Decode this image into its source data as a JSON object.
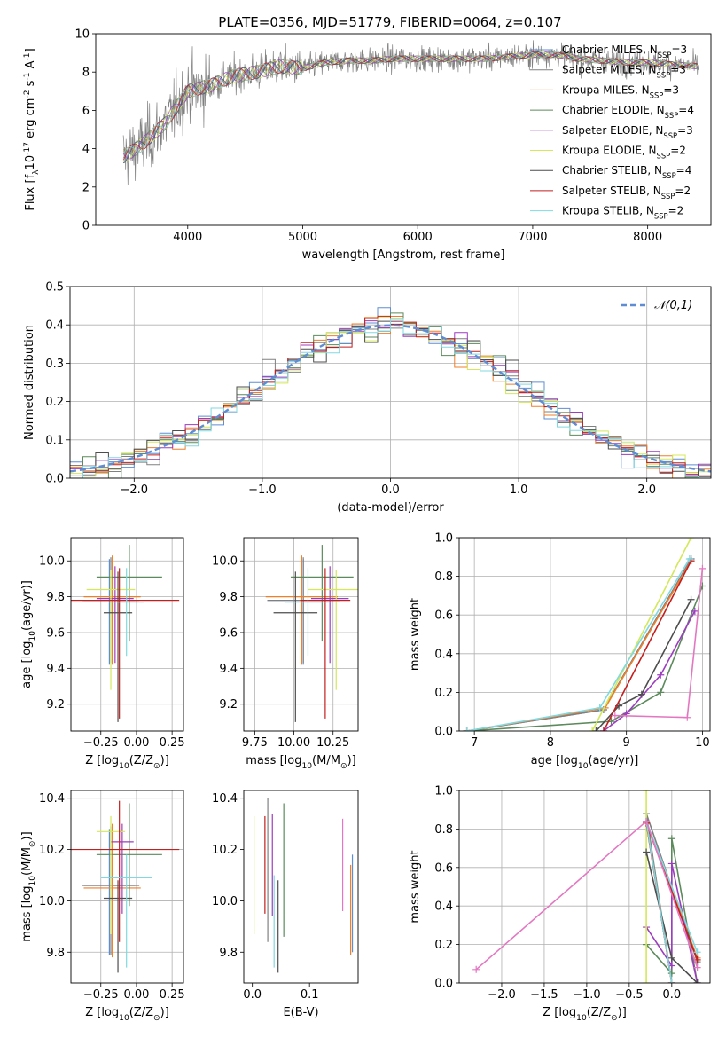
{
  "figure": {
    "title": "PLATE=0356, MJD=51779, FIBERID=0064, z=0.107"
  },
  "series": [
    {
      "name": "Chabrier MILES, N$_{SSP}$=3",
      "color": "#5f8dd3"
    },
    {
      "name": "Salpeter MILES, N$_{SSP}$=3",
      "color": "#808080"
    },
    {
      "name": "Kroupa MILES, N$_{SSP}$=3",
      "color": "#f07f2a"
    },
    {
      "name": "Chabrier ELODIE, N$_{SSP}$=4",
      "color": "#5c8a5c"
    },
    {
      "name": "Salpeter ELODIE, N$_{SSP}$=3",
      "color": "#9c3dbf"
    },
    {
      "name": "Kroupa ELODIE, N$_{SSP}$=2",
      "color": "#d4e85a"
    },
    {
      "name": "Chabrier STELIB, N$_{SSP}$=4",
      "color": "#4d4d4d"
    },
    {
      "name": "Salpeter STELIB, N$_{SSP}$=2",
      "color": "#c21f1f"
    },
    {
      "name": "Kroupa STELIB, N$_{SSP}$=2",
      "color": "#80d8e0"
    }
  ],
  "chart_data": [
    {
      "id": "spectrum",
      "type": "line",
      "xlabel": "wavelength [Angstrom, rest frame]",
      "ylabel": "Flux [f$_\\lambda$10$^{-17}$ erg cm$^{-2}$ s$^{-1}$ A$^{-1}$]",
      "xlim": [
        3200,
        8550
      ],
      "ylim": [
        0,
        10
      ],
      "xticks": [
        4000,
        5000,
        6000,
        7000,
        8000
      ],
      "yticks": [
        0,
        2,
        4,
        6,
        8,
        10
      ],
      "grid": false,
      "legend": "right",
      "data_wavelength_range": [
        3440,
        8440
      ],
      "model_anchors_x": [
        3450,
        3600,
        3800,
        4000,
        4200,
        4400,
        4600,
        4800,
        5000,
        5200,
        5400,
        5600,
        5800,
        6000,
        6200,
        6400,
        6600,
        6800,
        7000,
        7200,
        7400,
        7600,
        7800,
        8000,
        8200,
        8440
      ],
      "model_anchors_y": [
        3.6,
        4.2,
        5.3,
        7.0,
        7.3,
        7.8,
        8.0,
        8.3,
        8.2,
        8.5,
        8.6,
        8.6,
        8.7,
        8.7,
        8.7,
        8.7,
        8.7,
        8.8,
        8.9,
        8.9,
        8.7,
        8.6,
        8.5,
        8.5,
        8.4,
        8.3
      ]
    },
    {
      "id": "residuals",
      "type": "histogram",
      "xlabel": "(data-model)/error",
      "ylabel": "Normed distribution",
      "xlim": [
        -2.5,
        2.5
      ],
      "ylim": [
        0,
        0.5
      ],
      "xticks": [
        -2,
        -1,
        0,
        1,
        2
      ],
      "yticks": [
        0.0,
        0.1,
        0.2,
        0.3,
        0.4,
        0.5
      ],
      "grid": true,
      "legend": "top-right",
      "reference_curve": "$\\mathcal{N}(0,1)$",
      "reference_color": "#5f8dd3"
    },
    {
      "id": "age-vs-Z",
      "type": "scatter",
      "xlabel": "Z [log$_{10}$(Z/Z$_\\odot$)]",
      "ylabel": "age  [log$_{10}$(age/yr)]",
      "xlim": [
        -0.46,
        0.33
      ],
      "ylim": [
        9.05,
        10.13
      ],
      "xticks": [
        -0.25,
        0.0,
        0.25
      ],
      "yticks": [
        9.2,
        9.4,
        9.6,
        9.8,
        10.0
      ],
      "grid": true,
      "points": [
        {
          "x": -0.19,
          "y": 9.78,
          "xerr": 0.18,
          "ylo": 9.42,
          "yhi": 10.01
        },
        {
          "x": -0.18,
          "y": 9.78,
          "xerr": 0.2,
          "ylo": 9.43,
          "yhi": 10.02
        },
        {
          "x": -0.17,
          "y": 9.8,
          "xerr": 0.2,
          "ylo": 9.42,
          "yhi": 10.03
        },
        {
          "x": -0.05,
          "y": 9.91,
          "xerr": 0.23,
          "ylo": 9.55,
          "yhi": 10.09
        },
        {
          "x": -0.15,
          "y": 9.79,
          "xerr": 0.13,
          "ylo": 9.43,
          "yhi": 9.97
        },
        {
          "x": -0.18,
          "y": 9.84,
          "xerr": 0.17,
          "ylo": 9.28,
          "yhi": 9.95
        },
        {
          "x": -0.13,
          "y": 9.71,
          "xerr": 0.1,
          "ylo": 9.1,
          "yhi": 9.94
        },
        {
          "x": -0.12,
          "y": 9.78,
          "xerr": 0.42,
          "ylo": 9.12,
          "yhi": 9.96
        },
        {
          "x": -0.07,
          "y": 9.77,
          "xerr": 0.12,
          "ylo": 9.47,
          "yhi": 9.96
        }
      ]
    },
    {
      "id": "age-vs-mass",
      "type": "scatter",
      "xlabel": "mass [log$_{10}$(M/M$_\\odot$)]",
      "ylabel": "",
      "xlim": [
        9.68,
        10.41
      ],
      "ylim": [
        9.05,
        10.13
      ],
      "xticks": [
        9.75,
        10.0,
        10.25
      ],
      "yticks": [
        9.2,
        9.4,
        9.6,
        9.8,
        10.0
      ],
      "grid": true,
      "points": [
        {
          "x": 10.06,
          "y": 9.78,
          "xerr": 0.23,
          "ylo": 9.42,
          "yhi": 10.01
        },
        {
          "x": 10.06,
          "y": 9.78,
          "xerr": 0.23,
          "ylo": 9.43,
          "yhi": 10.02
        },
        {
          "x": 10.05,
          "y": 9.8,
          "xerr": 0.23,
          "ylo": 9.42,
          "yhi": 10.03
        },
        {
          "x": 10.18,
          "y": 9.91,
          "xerr": 0.2,
          "ylo": 9.55,
          "yhi": 10.09
        },
        {
          "x": 10.23,
          "y": 9.79,
          "xerr": 0.12,
          "ylo": 9.43,
          "yhi": 9.97
        },
        {
          "x": 10.27,
          "y": 9.84,
          "xerr": 0.18,
          "ylo": 9.28,
          "yhi": 9.95
        },
        {
          "x": 10.01,
          "y": 9.71,
          "xerr": 0.14,
          "ylo": 9.1,
          "yhi": 9.94
        },
        {
          "x": 10.2,
          "y": 9.78,
          "xerr": 0.16,
          "ylo": 9.12,
          "yhi": 9.96
        },
        {
          "x": 10.09,
          "y": 9.77,
          "xerr": 0.15,
          "ylo": 9.47,
          "yhi": 9.96
        }
      ]
    },
    {
      "id": "mass-weight-vs-age",
      "type": "line",
      "xlabel": "age  [log$_{10}$(age/yr)]",
      "ylabel": "mass weight",
      "xlim": [
        6.8,
        10.1
      ],
      "ylim": [
        0,
        1
      ],
      "xticks": [
        7,
        8,
        9,
        10
      ],
      "yticks": [
        0.0,
        0.2,
        0.4,
        0.6,
        0.8,
        1.0
      ],
      "grid": true,
      "lines": [
        {
          "x": [
            6.9,
            8.7,
            9.85
          ],
          "y": [
            0.0,
            0.11,
            0.89
          ]
        },
        {
          "x": [
            6.9,
            8.7,
            9.85
          ],
          "y": [
            0.0,
            0.11,
            0.89
          ]
        },
        {
          "x": [
            6.9,
            8.72,
            9.85
          ],
          "y": [
            0.0,
            0.12,
            0.88
          ]
        },
        {
          "x": [
            6.9,
            8.8,
            9.45,
            10.0
          ],
          "y": [
            0.0,
            0.05,
            0.2,
            0.75
          ]
        },
        {
          "x": [
            8.7,
            9.0,
            9.45,
            9.9
          ],
          "y": [
            0.0,
            0.09,
            0.29,
            0.62
          ]
        },
        {
          "x": [
            8.55,
            9.85
          ],
          "y": [
            0.0,
            1.0
          ]
        },
        {
          "x": [
            8.6,
            8.9,
            9.2,
            9.85
          ],
          "y": [
            0.0,
            0.13,
            0.19,
            0.68
          ]
        },
        {
          "x": [
            8.7,
            9.85
          ],
          "y": [
            0.0,
            0.88
          ]
        },
        {
          "x": [
            6.9,
            8.65,
            9.83
          ],
          "y": [
            0.0,
            0.12,
            0.89
          ]
        }
      ],
      "extra_line": {
        "x": [
          8.85,
          9.8,
          10.0
        ],
        "y": [
          0.08,
          0.07,
          0.84
        ],
        "color": "#e377c2"
      }
    },
    {
      "id": "mass-vs-Z",
      "type": "scatter",
      "xlabel": "Z [log$_{10}$(Z/Z$_\\odot$)]",
      "ylabel": "mass [log$_{10}$(M/M$_\\odot$)]",
      "xlim": [
        -0.46,
        0.33
      ],
      "ylim": [
        9.68,
        10.43
      ],
      "xticks": [
        -0.25,
        0.0,
        0.25
      ],
      "yticks": [
        9.8,
        10.0,
        10.2,
        10.4
      ],
      "grid": true,
      "points": [
        {
          "x": -0.19,
          "y": 10.06,
          "xerr": 0.18,
          "ylo": 9.79,
          "yhi": 10.28
        },
        {
          "x": -0.18,
          "y": 10.06,
          "xerr": 0.2,
          "ylo": 9.79,
          "yhi": 10.29
        },
        {
          "x": -0.17,
          "y": 10.05,
          "xerr": 0.2,
          "ylo": 9.78,
          "yhi": 10.3
        },
        {
          "x": -0.05,
          "y": 10.18,
          "xerr": 0.23,
          "ylo": 9.98,
          "yhi": 10.38
        },
        {
          "x": -0.1,
          "y": 10.23,
          "xerr": 0.08,
          "ylo": 9.95,
          "yhi": 10.3
        },
        {
          "x": -0.18,
          "y": 10.27,
          "xerr": 0.1,
          "ylo": 9.87,
          "yhi": 10.33
        },
        {
          "x": -0.13,
          "y": 10.01,
          "xerr": 0.1,
          "ylo": 9.72,
          "yhi": 10.08
        },
        {
          "x": -0.12,
          "y": 10.2,
          "xerr": 0.42,
          "ylo": 9.84,
          "yhi": 10.39
        },
        {
          "x": -0.07,
          "y": 10.09,
          "xerr": 0.18,
          "ylo": 9.74,
          "yhi": 10.18
        }
      ]
    },
    {
      "id": "mass-vs-ebv",
      "type": "scatter",
      "xlabel": "E(B-V)",
      "ylabel": "",
      "xlim": [
        -0.015,
        0.185
      ],
      "ylim": [
        9.68,
        10.43
      ],
      "xticks": [
        0.0,
        0.1
      ],
      "yticks": [
        9.8,
        10.0,
        10.2,
        10.4
      ],
      "grid": false,
      "points": [
        {
          "x": 0.175,
          "y": 10.06,
          "ylo": 9.8,
          "yhi": 10.18
        },
        {
          "x": 0.027,
          "y": 10.06,
          "ylo": 9.84,
          "yhi": 10.4
        },
        {
          "x": 0.172,
          "y": 10.05,
          "ylo": 9.79,
          "yhi": 10.14
        },
        {
          "x": 0.055,
          "y": 10.18,
          "ylo": 9.86,
          "yhi": 10.38
        },
        {
          "x": 0.035,
          "y": 10.23,
          "ylo": 9.94,
          "yhi": 10.34
        },
        {
          "x": 0.003,
          "y": 10.27,
          "ylo": 9.87,
          "yhi": 10.33
        },
        {
          "x": 0.045,
          "y": 10.01,
          "ylo": 9.72,
          "yhi": 10.08
        },
        {
          "x": 0.022,
          "y": 10.2,
          "ylo": 9.95,
          "yhi": 10.33
        },
        {
          "x": 0.038,
          "y": 10.09,
          "ylo": 9.74,
          "yhi": 10.1
        }
      ],
      "extra_point": {
        "x": 0.158,
        "y": 10.15,
        "ylo": 9.96,
        "yhi": 10.32,
        "color": "#e377c2"
      }
    },
    {
      "id": "mass-weight-vs-Z",
      "type": "line",
      "xlabel": "Z [log$_{10}$(Z/Z$_\\odot$)]",
      "ylabel": "mass weight",
      "xlim": [
        -2.5,
        0.45
      ],
      "ylim": [
        0,
        1
      ],
      "xticks": [
        -2.0,
        -1.5,
        -1.0,
        -0.5,
        0.0
      ],
      "yticks": [
        0.0,
        0.2,
        0.4,
        0.6,
        0.8,
        1.0
      ],
      "grid": true,
      "lines": [
        {
          "x": [
            0.3,
            -0.3,
            0.0
          ],
          "y": [
            0.12,
            0.84,
            0.0
          ]
        },
        {
          "x": [
            0.3,
            -0.3,
            0.0
          ],
          "y": [
            0.11,
            0.88,
            0.0
          ]
        },
        {
          "x": [
            0.3,
            -0.3,
            0.0
          ],
          "y": [
            0.13,
            0.84,
            0.0
          ]
        },
        {
          "x": [
            -0.3,
            0.0,
            0.0,
            0.3
          ],
          "y": [
            0.2,
            0.05,
            0.75,
            0.0
          ]
        },
        {
          "x": [
            -0.3,
            0.0,
            0.0,
            0.3
          ],
          "y": [
            0.29,
            0.09,
            0.62,
            0.0
          ]
        },
        {
          "x": [
            -0.3,
            -0.3
          ],
          "y": [
            0.0,
            1.0
          ]
        },
        {
          "x": [
            -0.3,
            0.0,
            0.3
          ],
          "y": [
            0.68,
            0.13,
            0.0
          ]
        },
        {
          "x": [
            0.3,
            -0.3,
            0.0
          ],
          "y": [
            0.12,
            0.83,
            0.0
          ]
        },
        {
          "x": [
            0.3,
            -0.3,
            0.0
          ],
          "y": [
            0.16,
            0.84,
            0.0
          ]
        }
      ],
      "extra_line": {
        "x": [
          -2.3,
          -0.3,
          0.3
        ],
        "y": [
          0.07,
          0.84,
          0.08
        ],
        "color": "#e377c2"
      }
    }
  ]
}
